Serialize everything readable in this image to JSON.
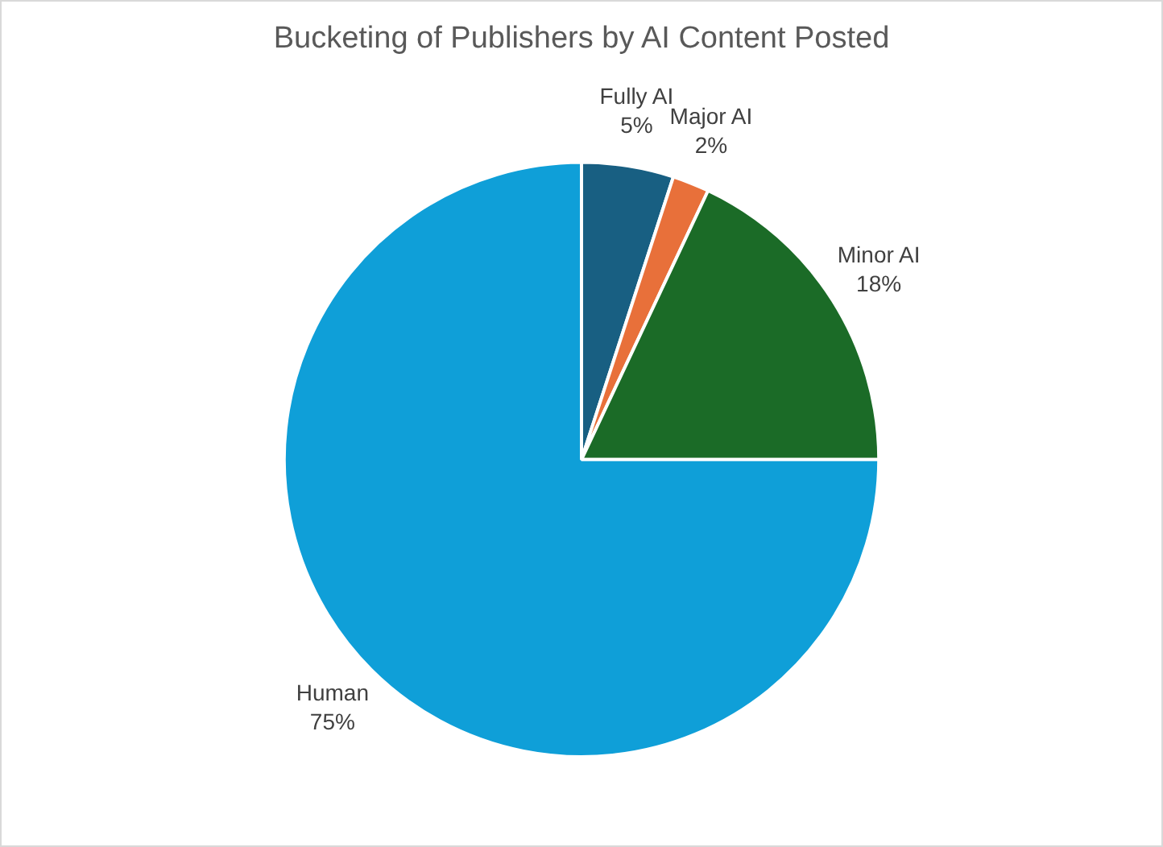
{
  "chart_data": {
    "type": "pie",
    "title": "Bucketing of Publishers by AI Content Posted",
    "categories": [
      "Fully AI",
      "Major AI",
      "Minor AI",
      "Human"
    ],
    "values": [
      5,
      2,
      18,
      75
    ],
    "value_labels": [
      "5%",
      "2%",
      "18%",
      "75%"
    ],
    "colors": [
      "#185f82",
      "#e8703a",
      "#1b6b27",
      "#0f9fd8"
    ],
    "legend": false
  }
}
